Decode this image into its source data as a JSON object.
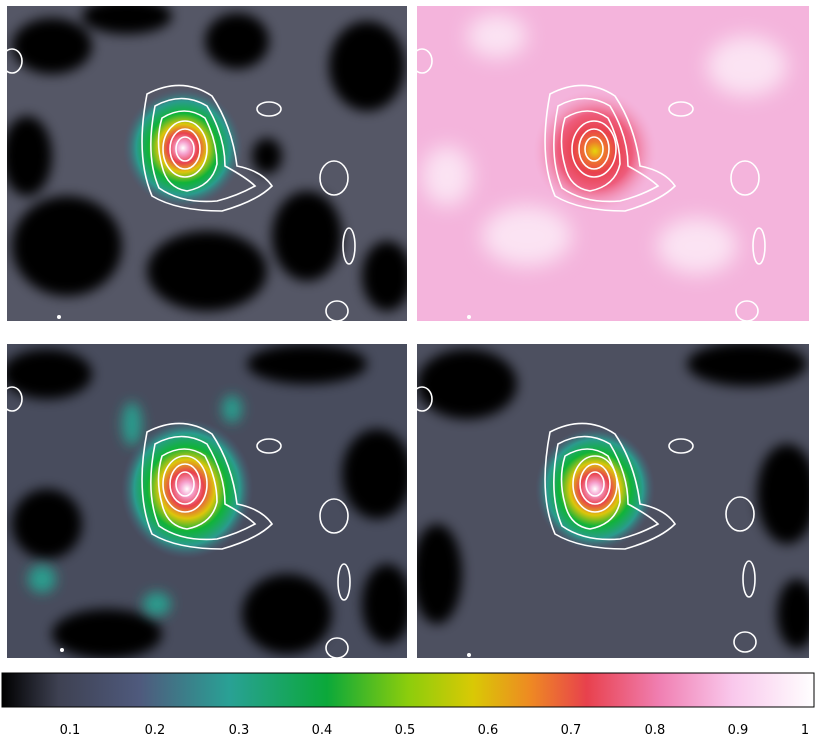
{
  "colorbar": {
    "tick_labels": [
      "0.1",
      "0.2",
      "0.3",
      "0.4",
      "0.5",
      "0.6",
      "0.7",
      "0.8",
      "0.9",
      "1"
    ],
    "stops": [
      "#000000",
      "#3e4152",
      "#4f5a7d",
      "#29a195",
      "#0ba83a",
      "#8ccd0c",
      "#d9c905",
      "#ee8a22",
      "#e8414d",
      "#f07fb2",
      "#f9c8ec",
      "#ffffff"
    ]
  },
  "panels": [
    {
      "name": "top-left",
      "background": "#555766",
      "blob_stops": [
        "#ffffff",
        "#f6a3d0",
        "#e8414d",
        "#ddc60b",
        "#10b339",
        "#2a9b8d",
        "#4b5a78"
      ]
    },
    {
      "name": "top-right",
      "background": "#f4b4dc",
      "blob_stops": [
        "#e6d60b",
        "#ee7a2a",
        "#e8414d",
        "#ee5c7c",
        "#f3a8cf"
      ]
    },
    {
      "name": "bottom-left",
      "background": "#484c5d",
      "blob_stops": [
        "#ffffff",
        "#f6a3d0",
        "#e8414d",
        "#ddc60b",
        "#10b339",
        "#2a9b8d",
        "#4b5a78"
      ]
    },
    {
      "name": "bottom-right",
      "background": "#4d5060",
      "blob_stops": [
        "#ffffff",
        "#f6a3d0",
        "#e8414d",
        "#ddc60b",
        "#10b339",
        "#2a9b8d",
        "#4b5a78"
      ]
    }
  ],
  "contour_color": "#ffffff"
}
